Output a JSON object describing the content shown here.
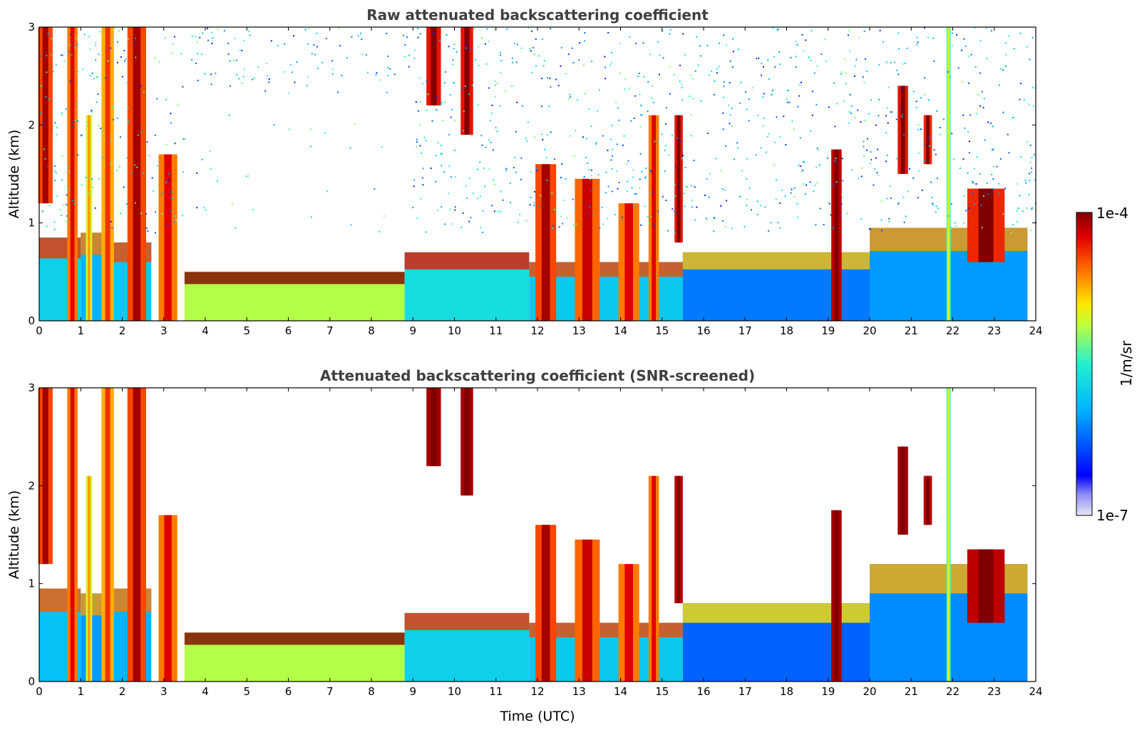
{
  "chart_data": [
    {
      "type": "heatmap",
      "title": "Raw attenuated backscattering coefficient",
      "xlabel": "",
      "ylabel": "Altitude (km)",
      "xlim": [
        0,
        24
      ],
      "ylim": [
        0,
        3
      ],
      "xticks": [
        "0",
        "1",
        "2",
        "3",
        "4",
        "5",
        "6",
        "7",
        "8",
        "9",
        "10",
        "11",
        "12",
        "13",
        "14",
        "15",
        "16",
        "17",
        "18",
        "19",
        "20",
        "21",
        "22",
        "23",
        "24"
      ],
      "yticks": [
        "0",
        "1",
        "2",
        "3"
      ],
      "noise": true,
      "layers": [
        {
          "t0": 0.0,
          "t1": 1.0,
          "top": 0.85,
          "level": 0.42
        },
        {
          "t0": 1.0,
          "t1": 1.6,
          "top": 0.9,
          "level": 0.35
        },
        {
          "t0": 1.6,
          "t1": 2.7,
          "top": 0.8,
          "level": 0.4
        },
        {
          "t0": 3.5,
          "t1": 8.8,
          "top": 0.5,
          "level": 0.62
        },
        {
          "t0": 8.8,
          "t1": 11.8,
          "top": 0.7,
          "level": 0.45
        },
        {
          "t0": 11.8,
          "t1": 15.5,
          "top": 0.6,
          "level": 0.4
        },
        {
          "t0": 15.5,
          "t1": 20.0,
          "top": 0.7,
          "level": 0.28
        },
        {
          "t0": 20.0,
          "t1": 23.8,
          "top": 0.95,
          "level": 0.32
        }
      ],
      "plumes": [
        {
          "t": 0.15,
          "bottom": 1.2,
          "top": 3.0,
          "width": 0.35,
          "level": 0.85
        },
        {
          "t": 0.8,
          "bottom": 0.0,
          "top": 3.0,
          "width": 0.25,
          "level": 0.8
        },
        {
          "t": 1.2,
          "bottom": 0.0,
          "top": 2.1,
          "width": 0.15,
          "level": 0.65
        },
        {
          "t": 1.65,
          "bottom": 0.0,
          "top": 3.0,
          "width": 0.3,
          "level": 0.75
        },
        {
          "t": 2.35,
          "bottom": 0.0,
          "top": 3.0,
          "width": 0.45,
          "level": 0.85
        },
        {
          "t": 3.1,
          "bottom": 0.0,
          "top": 1.7,
          "width": 0.45,
          "level": 0.8
        },
        {
          "t": 9.5,
          "bottom": 2.2,
          "top": 3.0,
          "width": 0.35,
          "level": 0.9
        },
        {
          "t": 10.3,
          "bottom": 1.9,
          "top": 3.0,
          "width": 0.3,
          "level": 0.9
        },
        {
          "t": 12.2,
          "bottom": 0.0,
          "top": 1.6,
          "width": 0.5,
          "level": 0.85
        },
        {
          "t": 13.2,
          "bottom": 0.0,
          "top": 1.45,
          "width": 0.6,
          "level": 0.82
        },
        {
          "t": 14.2,
          "bottom": 0.0,
          "top": 1.2,
          "width": 0.5,
          "level": 0.8
        },
        {
          "t": 14.8,
          "bottom": 0.0,
          "top": 2.1,
          "width": 0.25,
          "level": 0.8
        },
        {
          "t": 15.4,
          "bottom": 0.8,
          "top": 2.1,
          "width": 0.2,
          "level": 0.9
        },
        {
          "t": 19.2,
          "bottom": 0.0,
          "top": 1.75,
          "width": 0.25,
          "level": 0.95
        },
        {
          "t": 20.8,
          "bottom": 1.5,
          "top": 2.4,
          "width": 0.25,
          "level": 0.9
        },
        {
          "t": 21.4,
          "bottom": 1.6,
          "top": 2.1,
          "width": 0.2,
          "level": 0.88
        },
        {
          "t": 21.9,
          "bottom": 0.0,
          "top": 3.0,
          "width": 0.1,
          "level": 0.55
        },
        {
          "t": 22.8,
          "bottom": 0.6,
          "top": 1.35,
          "width": 0.9,
          "level": 0.88
        }
      ]
    },
    {
      "type": "heatmap",
      "title": "Attenuated backscattering coefficient (SNR-screened)",
      "xlabel": "Time (UTC)",
      "ylabel": "Altitude (km)",
      "xlim": [
        0,
        24
      ],
      "ylim": [
        0,
        3
      ],
      "xticks": [
        "0",
        "1",
        "2",
        "3",
        "4",
        "5",
        "6",
        "7",
        "8",
        "9",
        "10",
        "11",
        "12",
        "13",
        "14",
        "15",
        "16",
        "17",
        "18",
        "19",
        "20",
        "21",
        "22",
        "23",
        "24"
      ],
      "yticks": [
        "0",
        "1",
        "2",
        "3"
      ],
      "noise": false,
      "layers": [
        {
          "t0": 0.0,
          "t1": 1.0,
          "top": 0.95,
          "level": 0.38
        },
        {
          "t0": 1.0,
          "t1": 1.6,
          "top": 0.9,
          "level": 0.32
        },
        {
          "t0": 1.6,
          "t1": 2.7,
          "top": 0.95,
          "level": 0.35
        },
        {
          "t0": 3.5,
          "t1": 8.8,
          "top": 0.5,
          "level": 0.62
        },
        {
          "t0": 8.8,
          "t1": 11.8,
          "top": 0.7,
          "level": 0.42
        },
        {
          "t0": 11.8,
          "t1": 15.5,
          "top": 0.6,
          "level": 0.4
        },
        {
          "t0": 15.5,
          "t1": 20.0,
          "top": 0.8,
          "level": 0.25
        },
        {
          "t0": 20.0,
          "t1": 23.8,
          "top": 1.2,
          "level": 0.3
        }
      ],
      "plumes": [
        {
          "t": 0.15,
          "bottom": 1.2,
          "top": 3.0,
          "width": 0.35,
          "level": 0.85
        },
        {
          "t": 0.8,
          "bottom": 0.0,
          "top": 3.0,
          "width": 0.25,
          "level": 0.8
        },
        {
          "t": 1.2,
          "bottom": 0.0,
          "top": 2.1,
          "width": 0.15,
          "level": 0.65
        },
        {
          "t": 1.65,
          "bottom": 0.0,
          "top": 3.0,
          "width": 0.3,
          "level": 0.75
        },
        {
          "t": 2.35,
          "bottom": 0.0,
          "top": 3.0,
          "width": 0.45,
          "level": 0.85
        },
        {
          "t": 3.1,
          "bottom": 0.0,
          "top": 1.7,
          "width": 0.45,
          "level": 0.8
        },
        {
          "t": 9.5,
          "bottom": 2.2,
          "top": 3.0,
          "width": 0.35,
          "level": 0.97
        },
        {
          "t": 10.3,
          "bottom": 1.9,
          "top": 3.0,
          "width": 0.3,
          "level": 0.97
        },
        {
          "t": 12.2,
          "bottom": 0.0,
          "top": 1.6,
          "width": 0.5,
          "level": 0.85
        },
        {
          "t": 13.2,
          "bottom": 0.0,
          "top": 1.45,
          "width": 0.6,
          "level": 0.82
        },
        {
          "t": 14.2,
          "bottom": 0.0,
          "top": 1.2,
          "width": 0.5,
          "level": 0.8
        },
        {
          "t": 14.8,
          "bottom": 0.0,
          "top": 2.1,
          "width": 0.25,
          "level": 0.8
        },
        {
          "t": 15.4,
          "bottom": 0.8,
          "top": 2.1,
          "width": 0.2,
          "level": 0.95
        },
        {
          "t": 19.2,
          "bottom": 0.0,
          "top": 1.75,
          "width": 0.25,
          "level": 0.97
        },
        {
          "t": 20.8,
          "bottom": 1.5,
          "top": 2.4,
          "width": 0.25,
          "level": 0.97
        },
        {
          "t": 21.4,
          "bottom": 1.6,
          "top": 2.1,
          "width": 0.2,
          "level": 0.95
        },
        {
          "t": 21.9,
          "bottom": 0.0,
          "top": 3.0,
          "width": 0.1,
          "level": 0.55
        },
        {
          "t": 22.8,
          "bottom": 0.6,
          "top": 1.35,
          "width": 0.9,
          "level": 0.95
        }
      ]
    }
  ],
  "colorbar": {
    "label": "1/m/sr",
    "max_label": "1e-4",
    "min_label": "1e-7",
    "colormap": "jet"
  }
}
